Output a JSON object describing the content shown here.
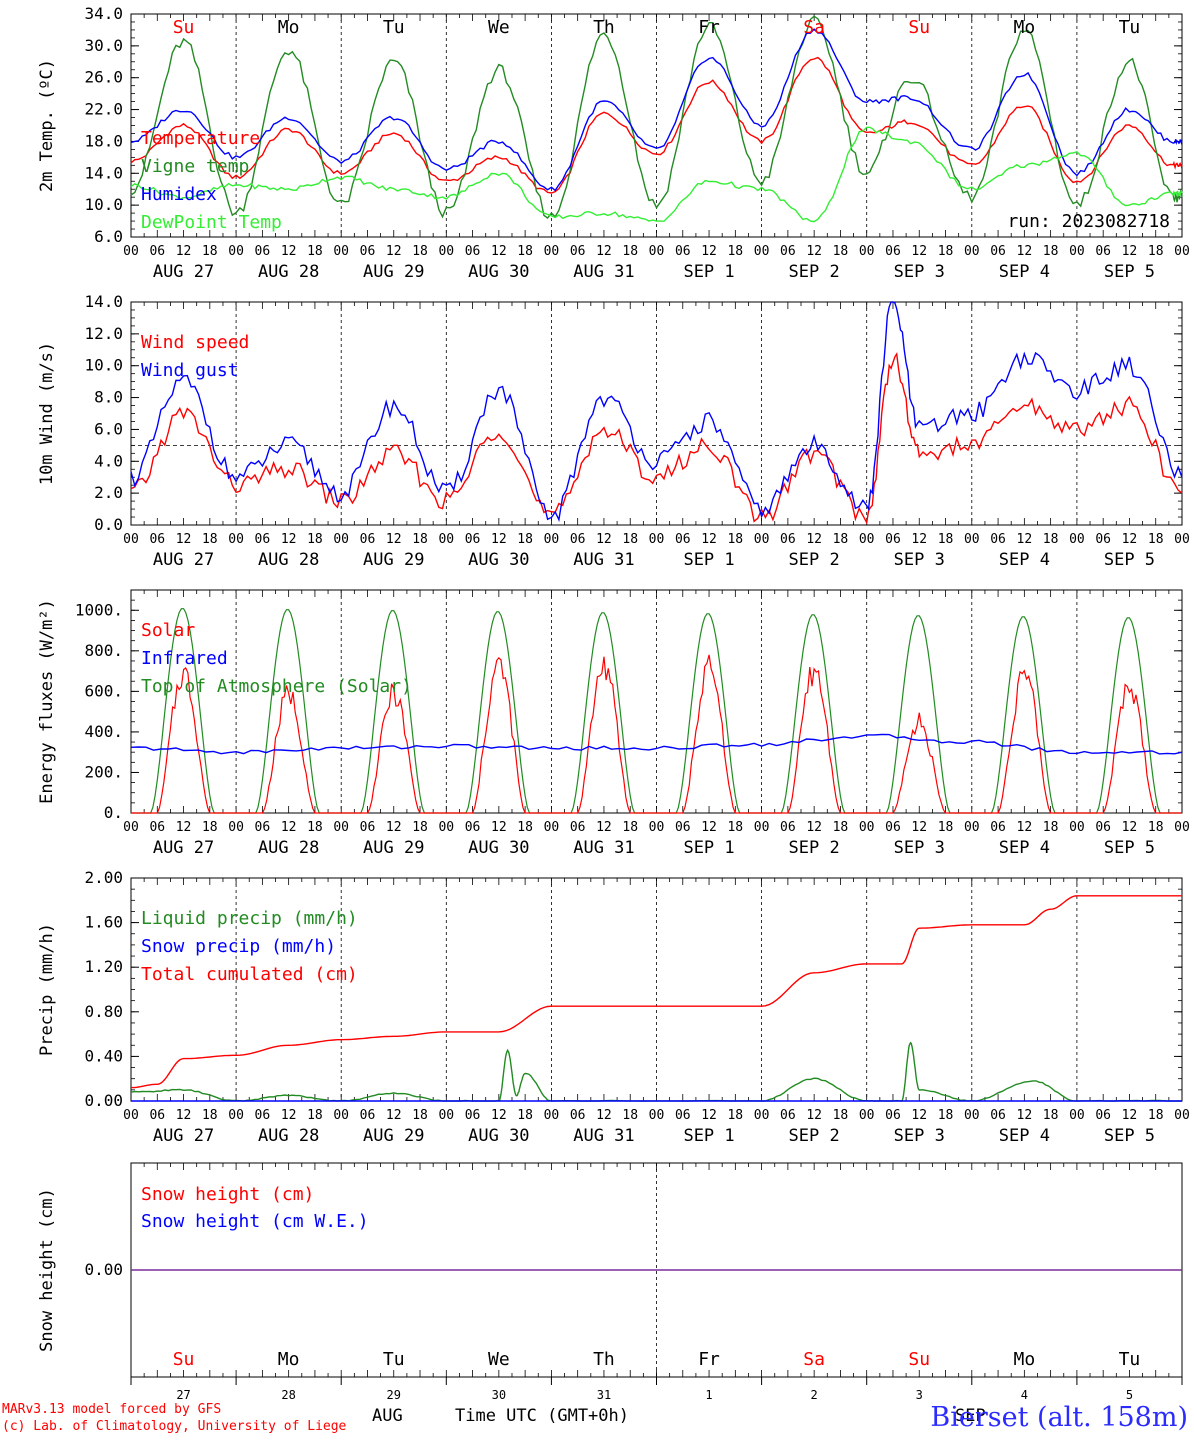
{
  "days": {
    "abbrev": [
      "Su",
      "Mo",
      "Tu",
      "We",
      "Th",
      "Fr",
      "Sa",
      "Su",
      "Mo",
      "Tu"
    ],
    "weekend": [
      true,
      false,
      false,
      false,
      false,
      false,
      true,
      true,
      false,
      false
    ],
    "dates": [
      "AUG 27",
      "AUG 28",
      "AUG 29",
      "AUG 30",
      "AUG 31",
      "SEP  1",
      "SEP  2",
      "SEP  3",
      "SEP  4",
      "SEP  5"
    ],
    "daynums": [
      "27",
      "28",
      "29",
      "30",
      "31",
      "1",
      "2",
      "3",
      "4",
      "5"
    ],
    "hour_labels": [
      "00",
      "06",
      "12",
      "18"
    ],
    "hour_label_end": "00"
  },
  "colors": {
    "red": "#ff0000",
    "green": "#228b22",
    "blue": "#0000ff",
    "light_green": "#33ee33",
    "purple": "#7a2a9a"
  },
  "footer": {
    "model_line": "MARv3.13 model forced by GFS",
    "lab_line": "(c) Lab. of Climatology, University of Liege",
    "month_label": "AUG",
    "month_label_2": "SEP",
    "time_label": "Time UTC (GMT+0h)",
    "station": "Bierset (alt. 158m)"
  },
  "chart_data": [
    {
      "type": "line",
      "ylabel": "2m Temp. (ºC)",
      "ylim": [
        6.0,
        34.0
      ],
      "yticks": [
        "6.0",
        "10.0",
        "14.0",
        "18.0",
        "22.0",
        "26.0",
        "30.0",
        "34.0"
      ],
      "xlim_hours": [
        0,
        240
      ],
      "annotation": "run: 2023082718",
      "series": [
        {
          "name": "Temperature",
          "color": "red",
          "x": [
            0,
            12,
            24,
            36,
            48,
            60,
            72,
            84,
            96,
            108,
            120,
            132,
            144,
            156,
            168,
            178,
            192,
            204,
            216,
            228,
            238,
            240
          ],
          "y": [
            15.5,
            20,
            13.5,
            19.5,
            14,
            19,
            13,
            16,
            11.5,
            21.5,
            16.5,
            25.5,
            18,
            28.5,
            19,
            20.5,
            15,
            22.5,
            13,
            20,
            15,
            15
          ]
        },
        {
          "name": "Vigne temp",
          "color": "green",
          "x": [
            0,
            12,
            24,
            36,
            48,
            60,
            72,
            84,
            96,
            108,
            120,
            132,
            144,
            156,
            168,
            178,
            192,
            204,
            216,
            228,
            238,
            240
          ],
          "y": [
            12,
            30.5,
            9,
            29.5,
            10,
            28,
            9,
            27,
            8.5,
            31.5,
            10,
            32.5,
            13,
            33,
            14,
            26,
            11,
            32,
            10,
            28,
            11,
            11
          ]
        },
        {
          "name": "Humidex",
          "color": "blue",
          "x": [
            0,
            12,
            24,
            36,
            48,
            60,
            72,
            84,
            96,
            108,
            120,
            132,
            144,
            156,
            168,
            178,
            192,
            204,
            216,
            228,
            238,
            240
          ],
          "y": [
            18,
            22,
            16,
            21,
            15.5,
            21,
            14.5,
            18,
            12,
            23,
            17,
            28.5,
            20,
            32,
            23,
            23.5,
            17,
            26.5,
            14,
            22,
            18,
            18
          ]
        },
        {
          "name": "DewPoint Temp",
          "color": "light_green",
          "x": [
            0,
            12,
            24,
            36,
            48,
            60,
            72,
            84,
            96,
            108,
            120,
            132,
            144,
            156,
            168,
            178,
            192,
            204,
            216,
            228,
            238,
            240
          ],
          "y": [
            12.5,
            11,
            12.5,
            12,
            13.5,
            12,
            11,
            14,
            8.5,
            9,
            8,
            13,
            12,
            8,
            19.5,
            18,
            12,
            15,
            16.5,
            10,
            11.5,
            11.5
          ]
        }
      ]
    },
    {
      "type": "line",
      "ylabel": "10m Wind (m/s)",
      "ylim": [
        0.0,
        14.0
      ],
      "yticks": [
        "0.0",
        "2.0",
        "4.0",
        "6.0",
        "8.0",
        "10.0",
        "12.0",
        "14.0"
      ],
      "xlim_hours": [
        0,
        240
      ],
      "reference_line": 5,
      "series": [
        {
          "name": "Wind speed",
          "color": "red",
          "x": [
            0,
            12,
            24,
            36,
            48,
            60,
            72,
            84,
            96,
            108,
            120,
            132,
            144,
            156,
            168,
            174,
            180,
            192,
            204,
            216,
            228,
            240
          ],
          "y": [
            2,
            7,
            2.5,
            3.5,
            1.5,
            4.5,
            1.5,
            6,
            0.5,
            6,
            3,
            5,
            0.5,
            4.5,
            0.5,
            10.5,
            4.5,
            5,
            7.5,
            6,
            7.5,
            2
          ]
        },
        {
          "name": "Wind gust",
          "color": "blue",
          "x": [
            0,
            12,
            24,
            36,
            48,
            60,
            72,
            84,
            96,
            108,
            120,
            132,
            144,
            156,
            168,
            174,
            180,
            192,
            204,
            216,
            228,
            240
          ],
          "y": [
            3,
            9,
            3,
            5,
            2,
            7.5,
            2,
            8.5,
            0.5,
            8,
            4,
            6.5,
            1,
            5,
            1,
            14,
            6,
            7,
            10.5,
            8.5,
            10,
            3
          ]
        }
      ]
    },
    {
      "type": "line",
      "ylabel": "Energy fluxes (W/m²)",
      "ylim": [
        0,
        1100
      ],
      "yticks": [
        "0.",
        "200.",
        "400.",
        "600.",
        "800.",
        "1000."
      ],
      "xlim_hours": [
        0,
        240
      ],
      "series": [
        {
          "name": "Solar",
          "color": "red",
          "peaks": [
            690,
            590,
            590,
            730,
            730,
            710,
            700,
            450,
            690,
            620
          ]
        },
        {
          "name": "Infrared",
          "color": "blue",
          "x": [
            0,
            24,
            48,
            72,
            96,
            120,
            144,
            168,
            192,
            216,
            240
          ],
          "y": [
            320,
            300,
            320,
            330,
            320,
            320,
            340,
            380,
            350,
            300,
            300
          ]
        },
        {
          "name": "Top of Atmosphere (Solar)",
          "color": "green",
          "peaks": [
            1010,
            1005,
            1000,
            995,
            990,
            985,
            980,
            975,
            970,
            965
          ]
        }
      ]
    },
    {
      "type": "line",
      "ylabel": "Precip (mm/h)",
      "ylim": [
        0.0,
        2.0
      ],
      "yticks": [
        "0.00",
        "0.40",
        "0.80",
        "1.20",
        "1.60",
        "2.00"
      ],
      "xlim_hours": [
        0,
        240
      ],
      "series": [
        {
          "name": "Liquid precip (mm/h)",
          "color": "green",
          "x": [
            0,
            12,
            24,
            36,
            48,
            60,
            72,
            84,
            86,
            88,
            90,
            96,
            144,
            156,
            168,
            176,
            178,
            180,
            192,
            206,
            216,
            240
          ],
          "y": [
            0.08,
            0.1,
            0,
            0.05,
            0,
            0.07,
            0,
            0,
            0.45,
            0.05,
            0.25,
            0,
            0,
            0.2,
            0,
            0,
            0.52,
            0.1,
            0,
            0.18,
            0,
            0
          ]
        },
        {
          "name": "Snow precip (mm/h)",
          "color": "blue",
          "x": [
            0,
            240
          ],
          "y": [
            0,
            0
          ]
        },
        {
          "name": "Total cumulated (cm)",
          "color": "red",
          "x": [
            0,
            6,
            12,
            24,
            36,
            48,
            60,
            72,
            84,
            96,
            108,
            120,
            132,
            144,
            156,
            168,
            176,
            180,
            192,
            204,
            210,
            216,
            240
          ],
          "y": [
            0.12,
            0.15,
            0.38,
            0.41,
            0.5,
            0.55,
            0.58,
            0.62,
            0.62,
            0.85,
            0.85,
            0.85,
            0.85,
            0.85,
            1.15,
            1.23,
            1.23,
            1.55,
            1.58,
            1.58,
            1.72,
            1.84,
            1.84
          ]
        }
      ]
    },
    {
      "type": "line",
      "ylabel": "Snow height (cm)",
      "ylim": [
        -1,
        1
      ],
      "yticks": [
        "0.00"
      ],
      "xlim_hours": [
        0,
        240
      ],
      "series": [
        {
          "name": "Snow height (cm)",
          "color": "red",
          "x": [
            0,
            240
          ],
          "y": [
            0,
            0
          ]
        },
        {
          "name": "Snow height (cm W.E.)",
          "color": "blue",
          "x": [
            0,
            240
          ],
          "y": [
            0,
            0
          ]
        }
      ]
    }
  ]
}
